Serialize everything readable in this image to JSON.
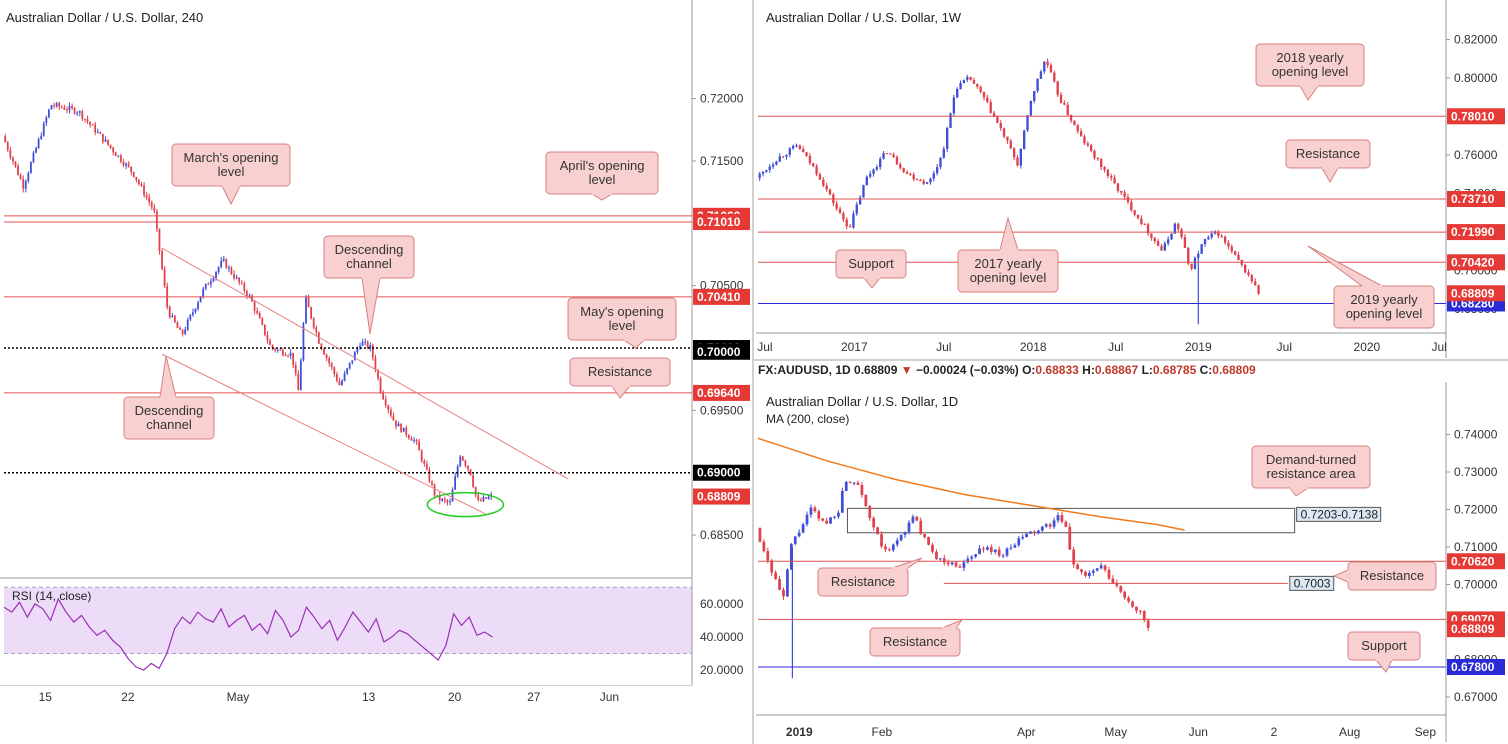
{
  "ohlc_bar": {
    "symbol": "FX:AUDUSD, 1D",
    "last": "0.68809",
    "arrow": "▼",
    "change": "−0.00024 (−0.03%)",
    "o_label": "O:",
    "o": "0.68833",
    "h_label": "H:",
    "h": "0.68867",
    "l_label": "L:",
    "l": "0.68785",
    "c_label": "C:",
    "c": "0.68809"
  },
  "colors": {
    "bull": "#3f4fd8",
    "bear": "#e0414c",
    "level": "#e05050",
    "support_blue": "#2a2ad6",
    "label_bg": "#f8d0d0",
    "label_border": "#d98080",
    "price_tag": "#e53935",
    "rsi_line": "#9b2fb5",
    "rsi_fill": "#ecdcf8",
    "ma_line": "#f07a1a",
    "ellipse": "#22cc22"
  },
  "chart_data": [
    {
      "id": "h4",
      "type": "candlestick",
      "title": "Australian Dollar / U.S. Dollar, 240",
      "ylim": [
        0.6818,
        0.7255
      ],
      "y_ticks": [
        "0.72000",
        "0.71500",
        "0.70500",
        "0.69500",
        "0.68500"
      ],
      "y_tick_values": [
        0.72,
        0.715,
        0.705,
        0.695,
        0.685
      ],
      "x_ticks": [
        "15",
        "22",
        "May",
        "13",
        "20",
        "27",
        "Jun"
      ],
      "x_tick_values": [
        0.06,
        0.18,
        0.34,
        0.53,
        0.655,
        0.77,
        0.88
      ],
      "x_range_days": 52,
      "levels": [
        {
          "price": 0.7106,
          "label": "0.71060",
          "style": "solid",
          "color": "#e05050"
        },
        {
          "price": 0.7101,
          "label": "0.71010",
          "style": "solid",
          "color": "#e05050"
        },
        {
          "price": 0.7041,
          "label": "0.70410",
          "style": "solid",
          "color": "#e05050"
        },
        {
          "price": 0.7,
          "label": "0.70000",
          "style": "dotted",
          "color": "#000000"
        },
        {
          "price": 0.6964,
          "label": "0.69640",
          "style": "solid",
          "color": "#e05050"
        },
        {
          "price": 0.69,
          "label": "0.69000",
          "style": "dotted",
          "color": "#000000"
        }
      ],
      "extra_tags": [
        {
          "price": 0.6997,
          "label": "0.70000",
          "color": "#000000"
        },
        {
          "price": 0.68809,
          "label": "0.68809",
          "color": "#e53935"
        }
      ],
      "channel": [
        {
          "from": [
            0.23,
            0.708
          ],
          "to": [
            0.82,
            0.6895
          ]
        },
        {
          "from": [
            0.23,
            0.6995
          ],
          "to": [
            0.7,
            0.6867
          ]
        }
      ],
      "annotations": [
        {
          "text": "March's opening level",
          "lines": [
            "March's opening",
            "level"
          ]
        },
        {
          "text": "April's opening level",
          "lines": [
            "April's opening",
            "level"
          ]
        },
        {
          "text": "Descending channel",
          "lines": [
            "Descending",
            "channel"
          ]
        },
        {
          "text": "May's opening level",
          "lines": [
            "May's opening",
            "level"
          ]
        },
        {
          "text": "Resistance",
          "lines": [
            "Resistance"
          ]
        },
        {
          "text": "Descending channel",
          "lines": [
            "Descending",
            "channel"
          ]
        }
      ],
      "path": [
        [
          0,
          0.717
        ],
        [
          0.03,
          0.713
        ],
        [
          0.07,
          0.7195
        ],
        [
          0.11,
          0.719
        ],
        [
          0.15,
          0.7165
        ],
        [
          0.19,
          0.714
        ],
        [
          0.22,
          0.711
        ],
        [
          0.24,
          0.703
        ],
        [
          0.26,
          0.701
        ],
        [
          0.29,
          0.7045
        ],
        [
          0.32,
          0.707
        ],
        [
          0.36,
          0.704
        ],
        [
          0.39,
          0.7
        ],
        [
          0.42,
          0.6995
        ],
        [
          0.43,
          0.6965
        ],
        [
          0.44,
          0.704
        ],
        [
          0.46,
          0.7005
        ],
        [
          0.49,
          0.697
        ],
        [
          0.52,
          0.7005
        ],
        [
          0.535,
          0.7
        ],
        [
          0.55,
          0.6965
        ],
        [
          0.57,
          0.694
        ],
        [
          0.6,
          0.6925
        ],
        [
          0.63,
          0.688
        ],
        [
          0.65,
          0.6875
        ],
        [
          0.665,
          0.6915
        ],
        [
          0.68,
          0.69
        ],
        [
          0.69,
          0.6876
        ],
        [
          0.71,
          0.6881
        ]
      ],
      "ellipse_around": {
        "x": 0.63,
        "price": 0.6876
      }
    },
    {
      "id": "rsi",
      "type": "line",
      "title": "RSI (14, close)",
      "ylim": [
        14,
        72
      ],
      "y_ticks": [
        "60.0000",
        "40.0000",
        "20.0000"
      ],
      "y_tick_values": [
        60,
        40,
        20
      ],
      "band": [
        30,
        70
      ],
      "values": [
        58,
        55,
        61,
        52,
        60,
        57,
        50,
        63,
        55,
        49,
        53,
        46,
        41,
        44,
        38,
        34,
        27,
        22,
        20,
        24,
        21,
        30,
        45,
        52,
        48,
        55,
        51,
        49,
        57,
        46,
        50,
        53,
        44,
        48,
        42,
        56,
        50,
        40,
        44,
        58,
        52,
        45,
        50,
        38,
        46,
        55,
        49,
        43,
        51,
        37,
        40,
        44,
        42,
        38,
        34,
        30,
        26,
        35,
        54,
        47,
        52,
        41,
        43,
        40
      ]
    },
    {
      "id": "w1",
      "type": "candlestick",
      "title": "Australian Dollar / U.S. Dollar, 1W",
      "ylim": [
        0.669,
        0.826
      ],
      "y_ticks": [
        "0.82000",
        "0.80000",
        "0.76000",
        "0.74000",
        "0.72000",
        "0.70000",
        "0.68000"
      ],
      "y_tick_values": [
        0.82,
        0.8,
        0.76,
        0.74,
        0.72,
        0.7,
        0.68
      ],
      "x_ticks": [
        "Jul",
        "2017",
        "Jul",
        "2018",
        "Jul",
        "2019",
        "Jul",
        "2020",
        "Jul"
      ],
      "x_tick_values": [
        0.01,
        0.14,
        0.27,
        0.4,
        0.52,
        0.64,
        0.765,
        0.885,
        0.99
      ],
      "levels": [
        {
          "price": 0.7801,
          "label": "0.78010",
          "style": "solid",
          "color": "#e05050"
        },
        {
          "price": 0.7371,
          "label": "0.73710",
          "style": "solid",
          "color": "#e05050"
        },
        {
          "price": 0.7199,
          "label": "0.71990",
          "style": "solid",
          "color": "#e05050"
        },
        {
          "price": 0.7042,
          "label": "0.70420",
          "style": "solid",
          "color": "#e05050"
        },
        {
          "price": 0.6828,
          "label": "0.68280",
          "style": "solid",
          "color": "#2a2ad6"
        }
      ],
      "extra_tags": [
        {
          "price": 0.68809,
          "label": "0.68809",
          "color": "#e53935"
        }
      ],
      "annotations": [
        {
          "text": "2018 yearly opening level",
          "lines": [
            "2018 yearly",
            "opening level"
          ]
        },
        {
          "text": "Resistance",
          "lines": [
            "Resistance"
          ]
        },
        {
          "text": "Support",
          "lines": [
            "Support"
          ]
        },
        {
          "text": "2017 yearly opening level",
          "lines": [
            "2017 yearly",
            "opening level"
          ]
        },
        {
          "text": "2019 yearly opening level",
          "lines": [
            "2019 yearly",
            "opening level"
          ]
        }
      ],
      "path": [
        [
          0,
          0.748
        ],
        [
          0.03,
          0.758
        ],
        [
          0.06,
          0.765
        ],
        [
          0.09,
          0.75
        ],
        [
          0.12,
          0.73
        ],
        [
          0.135,
          0.722
        ],
        [
          0.16,
          0.748
        ],
        [
          0.19,
          0.762
        ],
        [
          0.22,
          0.75
        ],
        [
          0.25,
          0.745
        ],
        [
          0.27,
          0.76
        ],
        [
          0.29,
          0.795
        ],
        [
          0.31,
          0.8
        ],
        [
          0.33,
          0.79
        ],
        [
          0.36,
          0.77
        ],
        [
          0.38,
          0.755
        ],
        [
          0.4,
          0.79
        ],
        [
          0.42,
          0.81
        ],
        [
          0.44,
          0.79
        ],
        [
          0.47,
          0.77
        ],
        [
          0.5,
          0.755
        ],
        [
          0.53,
          0.74
        ],
        [
          0.55,
          0.73
        ],
        [
          0.57,
          0.72
        ],
        [
          0.59,
          0.71
        ],
        [
          0.61,
          0.725
        ],
        [
          0.62,
          0.715
        ],
        [
          0.63,
          0.7
        ],
        [
          0.65,
          0.715
        ],
        [
          0.67,
          0.72
        ],
        [
          0.69,
          0.71
        ],
        [
          0.71,
          0.7
        ],
        [
          0.72,
          0.695
        ],
        [
          0.73,
          0.6881
        ]
      ],
      "wick_spike": {
        "x": 0.64,
        "price": 0.672
      }
    },
    {
      "id": "d1",
      "type": "candlestick",
      "title": "Australian Dollar / U.S. Dollar, 1D",
      "subtitle": "MA (200, close)",
      "ylim": [
        0.666,
        0.746
      ],
      "y_ticks": [
        "0.74000",
        "0.73000",
        "0.72000",
        "0.71000",
        "0.70000",
        "0.69000",
        "0.68000",
        "0.67000"
      ],
      "y_tick_values": [
        0.74,
        0.73,
        0.72,
        0.71,
        0.7,
        0.69,
        0.68,
        0.67
      ],
      "x_ticks": [
        "2019",
        "Feb",
        "Apr",
        "May",
        "Jun",
        "2",
        "Aug",
        "Sep"
      ],
      "x_tick_values": [
        0.06,
        0.18,
        0.39,
        0.52,
        0.64,
        0.75,
        0.86,
        0.97
      ],
      "levels": [
        {
          "price": 0.7062,
          "label": "0.70620",
          "style": "solid",
          "color": "#e05050"
        },
        {
          "price": 0.6907,
          "label": "0.69070",
          "style": "solid",
          "color": "#e05050"
        },
        {
          "price": 0.678,
          "label": "0.67800",
          "style": "solid",
          "color": "#2a2ad6"
        }
      ],
      "extra_tags": [
        {
          "price": 0.68809,
          "label": "0.68809",
          "color": "#e53935"
        }
      ],
      "zone": {
        "top": 0.7203,
        "bottom": 0.7138,
        "label": "0.7203-0.7138",
        "x_from": 0.13,
        "x_to": 0.78
      },
      "short_level": {
        "price": 0.7003,
        "label": "0.7003",
        "x_from": 0.27,
        "x_to": 0.77
      },
      "ma_points": [
        [
          0,
          0.739
        ],
        [
          0.1,
          0.733
        ],
        [
          0.2,
          0.728
        ],
        [
          0.3,
          0.724
        ],
        [
          0.4,
          0.721
        ],
        [
          0.5,
          0.718
        ],
        [
          0.58,
          0.716
        ],
        [
          0.62,
          0.7145
        ]
      ],
      "annotations": [
        {
          "text": "Demand-turned resistance area",
          "lines": [
            "Demand-turned",
            "resistance area"
          ]
        },
        {
          "text": "Resistance",
          "lines": [
            "Resistance"
          ]
        },
        {
          "text": "Resistance",
          "lines": [
            "Resistance"
          ]
        },
        {
          "text": "Resistance",
          "lines": [
            "Resistance"
          ]
        },
        {
          "text": "Support",
          "lines": [
            "Support"
          ]
        }
      ],
      "path": [
        [
          0,
          0.715
        ],
        [
          0.02,
          0.705
        ],
        [
          0.04,
          0.696
        ],
        [
          0.05,
          0.71
        ],
        [
          0.08,
          0.72
        ],
        [
          0.1,
          0.716
        ],
        [
          0.12,
          0.72
        ],
        [
          0.13,
          0.728
        ],
        [
          0.15,
          0.727
        ],
        [
          0.17,
          0.715
        ],
        [
          0.19,
          0.708
        ],
        [
          0.21,
          0.713
        ],
        [
          0.23,
          0.718
        ],
        [
          0.25,
          0.71
        ],
        [
          0.27,
          0.706
        ],
        [
          0.3,
          0.705
        ],
        [
          0.33,
          0.71
        ],
        [
          0.36,
          0.708
        ],
        [
          0.39,
          0.713
        ],
        [
          0.42,
          0.715
        ],
        [
          0.44,
          0.718
        ],
        [
          0.45,
          0.715
        ],
        [
          0.46,
          0.706
        ],
        [
          0.48,
          0.702
        ],
        [
          0.5,
          0.705
        ],
        [
          0.52,
          0.7
        ],
        [
          0.54,
          0.696
        ],
        [
          0.56,
          0.692
        ],
        [
          0.57,
          0.6881
        ]
      ],
      "wick_spike": {
        "x": 0.05,
        "price": 0.675
      }
    }
  ]
}
